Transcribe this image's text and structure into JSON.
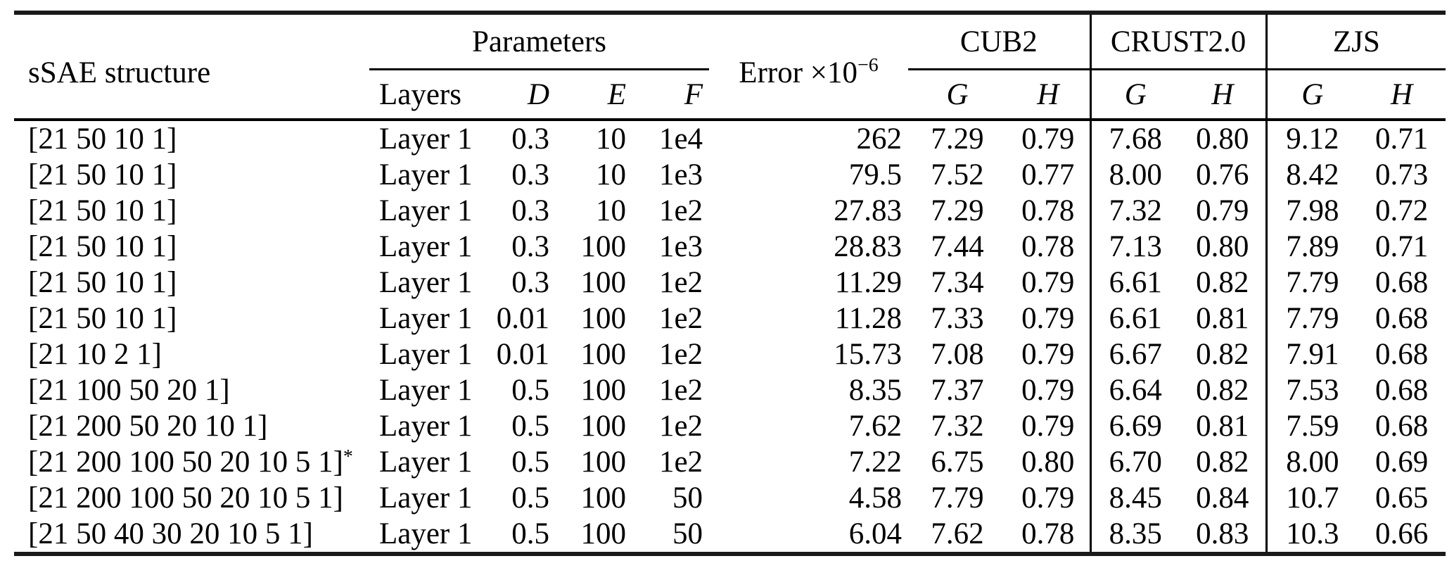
{
  "page": {
    "background_color": "#ffffff",
    "text_color": "#000000",
    "rule_color": "#000000"
  },
  "header": {
    "structure_label": "sSAE structure",
    "parameters_label": "Parameters",
    "parameters_sub": {
      "layers": "Layers",
      "d": "D",
      "e": "E",
      "f": "F"
    },
    "error_label": "Error ×10",
    "error_exponent": "−6",
    "groups": [
      {
        "label": "CUB2",
        "g": "G",
        "h": "H"
      },
      {
        "label": "CRUST2.0",
        "g": "G",
        "h": "H"
      },
      {
        "label": "ZJS",
        "g": "G",
        "h": "H"
      }
    ]
  },
  "rows": [
    {
      "structure": "[21 50 10 1]",
      "note": "",
      "layers": "Layer 1",
      "d": "0.3",
      "e": "10",
      "f": "1e4",
      "error": "262",
      "cub2_g": "7.29",
      "cub2_h": "0.79",
      "crust_g": "7.68",
      "crust_h": "0.80",
      "zjs_g": "9.12",
      "zjs_h": "0.71"
    },
    {
      "structure": "[21 50 10 1]",
      "note": "",
      "layers": "Layer 1",
      "d": "0.3",
      "e": "10",
      "f": "1e3",
      "error": "79.5",
      "cub2_g": "7.52",
      "cub2_h": "0.77",
      "crust_g": "8.00",
      "crust_h": "0.76",
      "zjs_g": "8.42",
      "zjs_h": "0.73"
    },
    {
      "structure": "[21 50 10 1]",
      "note": "",
      "layers": "Layer 1",
      "d": "0.3",
      "e": "10",
      "f": "1e2",
      "error": "27.83",
      "cub2_g": "7.29",
      "cub2_h": "0.78",
      "crust_g": "7.32",
      "crust_h": "0.79",
      "zjs_g": "7.98",
      "zjs_h": "0.72"
    },
    {
      "structure": "[21 50 10 1]",
      "note": "",
      "layers": "Layer 1",
      "d": "0.3",
      "e": "100",
      "f": "1e3",
      "error": "28.83",
      "cub2_g": "7.44",
      "cub2_h": "0.78",
      "crust_g": "7.13",
      "crust_h": "0.80",
      "zjs_g": "7.89",
      "zjs_h": "0.71"
    },
    {
      "structure": "[21 50 10 1]",
      "note": "",
      "layers": "Layer 1",
      "d": "0.3",
      "e": "100",
      "f": "1e2",
      "error": "11.29",
      "cub2_g": "7.34",
      "cub2_h": "0.79",
      "crust_g": "6.61",
      "crust_h": "0.82",
      "zjs_g": "7.79",
      "zjs_h": "0.68"
    },
    {
      "structure": "[21 50 10 1]",
      "note": "",
      "layers": "Layer 1",
      "d": "0.01",
      "e": "100",
      "f": "1e2",
      "error": "11.28",
      "cub2_g": "7.33",
      "cub2_h": "0.79",
      "crust_g": "6.61",
      "crust_h": "0.81",
      "zjs_g": "7.79",
      "zjs_h": "0.68"
    },
    {
      "structure": "[21 10 2 1]",
      "note": "",
      "layers": "Layer 1",
      "d": "0.01",
      "e": "100",
      "f": "1e2",
      "error": "15.73",
      "cub2_g": "7.08",
      "cub2_h": "0.79",
      "crust_g": "6.67",
      "crust_h": "0.82",
      "zjs_g": "7.91",
      "zjs_h": "0.68"
    },
    {
      "structure": "[21 100 50 20 1]",
      "note": "",
      "layers": "Layer 1",
      "d": "0.5",
      "e": "100",
      "f": "1e2",
      "error": "8.35",
      "cub2_g": "7.37",
      "cub2_h": "0.79",
      "crust_g": "6.64",
      "crust_h": "0.82",
      "zjs_g": "7.53",
      "zjs_h": "0.68"
    },
    {
      "structure": "[21 200 50 20 10 1]",
      "note": "",
      "layers": "Layer 1",
      "d": "0.5",
      "e": "100",
      "f": "1e2",
      "error": "7.62",
      "cub2_g": "7.32",
      "cub2_h": "0.79",
      "crust_g": "6.69",
      "crust_h": "0.81",
      "zjs_g": "7.59",
      "zjs_h": "0.68"
    },
    {
      "structure": "[21 200 100 50 20 10 5 1]",
      "note": "*",
      "layers": "Layer 1",
      "d": "0.5",
      "e": "100",
      "f": "1e2",
      "error": "7.22",
      "cub2_g": "6.75",
      "cub2_h": "0.80",
      "crust_g": "6.70",
      "crust_h": "0.82",
      "zjs_g": "8.00",
      "zjs_h": "0.69"
    },
    {
      "structure": "[21 200 100 50 20 10 5 1]",
      "note": "",
      "layers": "Layer 1",
      "d": "0.5",
      "e": "100",
      "f": "50",
      "error": "4.58",
      "cub2_g": "7.79",
      "cub2_h": "0.79",
      "crust_g": "8.45",
      "crust_h": "0.84",
      "zjs_g": "10.7",
      "zjs_h": "0.65"
    },
    {
      "structure": "[21 50 40 30 20 10 5 1]",
      "note": "",
      "layers": "Layer 1",
      "d": "0.5",
      "e": "100",
      "f": "50",
      "error": "6.04",
      "cub2_g": "7.62",
      "cub2_h": "0.78",
      "crust_g": "8.35",
      "crust_h": "0.83",
      "zjs_g": "10.3",
      "zjs_h": "0.66"
    }
  ]
}
